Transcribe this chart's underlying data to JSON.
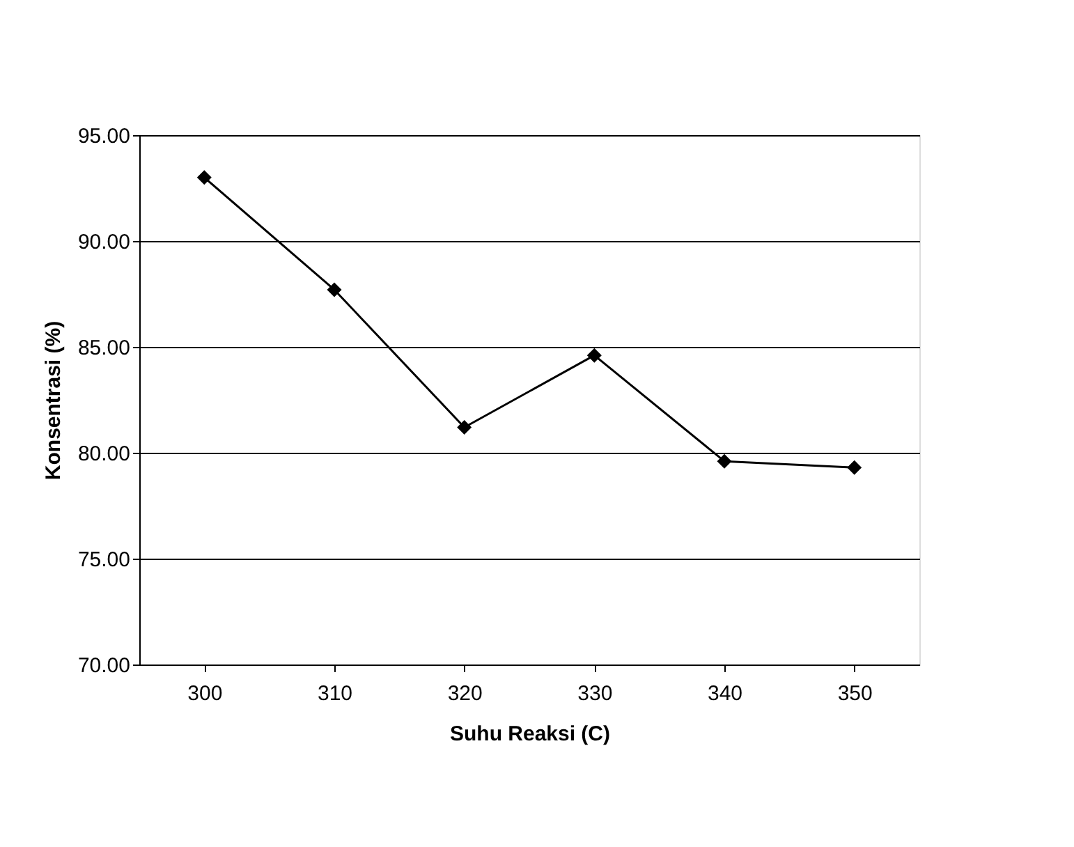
{
  "chart_data": {
    "type": "line",
    "xlabel": "Suhu Reaksi (C)",
    "ylabel": "Konsentrasi (%)",
    "categories": [
      "300",
      "310",
      "320",
      "330",
      "340",
      "350"
    ],
    "series": [
      {
        "color": "#000000",
        "values": [
          93.0,
          87.7,
          81.2,
          84.6,
          79.6,
          79.3
        ]
      }
    ],
    "ylim": [
      70,
      95
    ],
    "yticks": [
      {
        "value": 70,
        "label": "70.00"
      },
      {
        "value": 75,
        "label": "75.00"
      },
      {
        "value": 80,
        "label": "80.00"
      },
      {
        "value": 85,
        "label": "85.00"
      },
      {
        "value": 90,
        "label": "90.00"
      },
      {
        "value": 95,
        "label": "95.00"
      }
    ],
    "grid": "y",
    "marker": "diamond",
    "line_style": "solid"
  }
}
